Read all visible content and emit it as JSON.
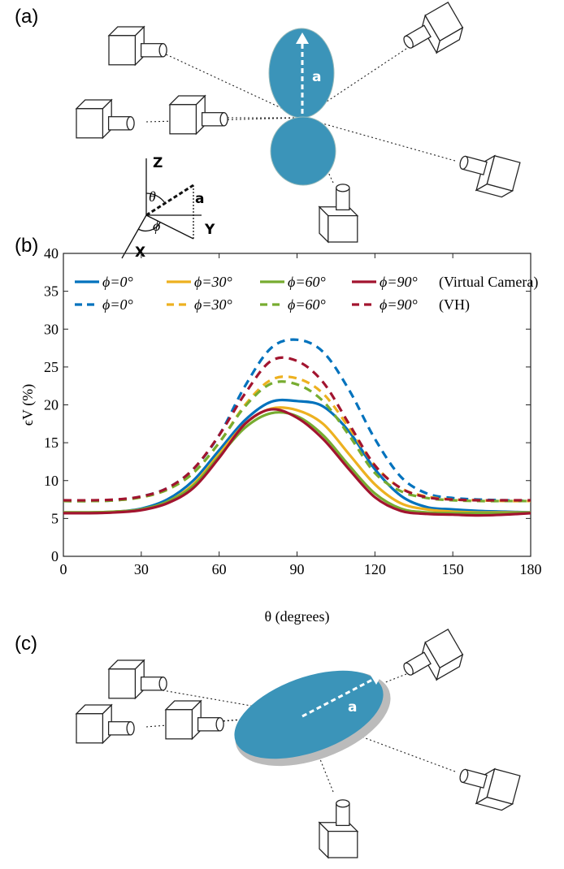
{
  "panel_labels": [
    "(a)",
    "(b)",
    "(c)"
  ],
  "diagram_a": {
    "vector_label": "a",
    "axes": {
      "z": "Z",
      "y": "Y",
      "x": "X",
      "theta": "θ",
      "phi": "ϕ",
      "vector": "a"
    }
  },
  "diagram_c": {
    "vector_label": "a"
  },
  "chart_data": {
    "type": "line",
    "xlabel": "θ (degrees)",
    "ylabel": "ϵV (%)",
    "x": [
      0,
      10,
      20,
      30,
      40,
      50,
      60,
      70,
      80,
      90,
      100,
      110,
      120,
      130,
      140,
      150,
      160,
      170,
      180
    ],
    "xlim": [
      0,
      180
    ],
    "xticks": [
      0,
      30,
      60,
      90,
      120,
      150,
      180
    ],
    "ylim": [
      0,
      40
    ],
    "yticks": [
      0,
      5,
      10,
      15,
      20,
      25,
      30,
      35,
      40
    ],
    "grid": false,
    "legend_groups": [
      "(Virtual Camera)",
      "(VH)"
    ],
    "series": [
      {
        "name": "ϕ=0°",
        "color": "#0072bd",
        "dash": false,
        "values": [
          5.8,
          5.8,
          5.9,
          6.3,
          7.5,
          10,
          14,
          18,
          20.4,
          20.5,
          19.8,
          16.5,
          11.5,
          8,
          6.5,
          6.2,
          6,
          5.9,
          5.8
        ]
      },
      {
        "name": "ϕ=30°",
        "color": "#edb120",
        "dash": false,
        "values": [
          5.8,
          5.8,
          5.9,
          6.2,
          7.2,
          9.5,
          13.5,
          17.5,
          19.5,
          19.3,
          17.5,
          13.5,
          9.5,
          7,
          6.2,
          5.9,
          5.8,
          5.8,
          5.8
        ]
      },
      {
        "name": "ϕ=60°",
        "color": "#77ac30",
        "dash": false,
        "values": [
          5.8,
          5.8,
          5.9,
          6.2,
          7.2,
          9.3,
          13.2,
          17,
          18.9,
          18.5,
          16,
          12,
          8.3,
          6.3,
          5.8,
          5.7,
          5.7,
          5.7,
          5.8
        ]
      },
      {
        "name": "ϕ=90°",
        "color": "#a2142f",
        "dash": false,
        "values": [
          5.7,
          5.7,
          5.8,
          6.1,
          7,
          9,
          13,
          17.5,
          19.4,
          18.3,
          15.5,
          11.5,
          7.8,
          6,
          5.6,
          5.5,
          5.4,
          5.5,
          5.7
        ]
      },
      {
        "name": "ϕ=0°",
        "color": "#0072bd",
        "dash": true,
        "values": [
          7.3,
          7.3,
          7.4,
          7.9,
          9,
          11.5,
          16,
          22.5,
          27.5,
          28.6,
          27,
          22,
          15.5,
          10.5,
          8.3,
          7.7,
          7.5,
          7.4,
          7.3
        ]
      },
      {
        "name": "ϕ=30°",
        "color": "#edb120",
        "dash": true,
        "values": [
          7.3,
          7.3,
          7.4,
          7.8,
          8.8,
          11,
          15,
          20,
          23.3,
          23.5,
          21.5,
          17,
          12,
          9,
          7.9,
          7.5,
          7.4,
          7.3,
          7.3
        ]
      },
      {
        "name": "ϕ=60°",
        "color": "#77ac30",
        "dash": true,
        "values": [
          7.3,
          7.3,
          7.4,
          7.8,
          8.8,
          11,
          15,
          19.8,
          22.8,
          22.7,
          20.5,
          16,
          11,
          8.6,
          7.7,
          7.4,
          7.3,
          7.3,
          7.3
        ]
      },
      {
        "name": "ϕ=90°",
        "color": "#a2142f",
        "dash": true,
        "values": [
          7.4,
          7.4,
          7.5,
          7.9,
          9,
          11.5,
          16,
          21.5,
          25.8,
          25.8,
          23,
          17.5,
          12,
          9,
          7.8,
          7.5,
          7.4,
          7.4,
          7.4
        ]
      }
    ]
  }
}
